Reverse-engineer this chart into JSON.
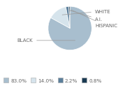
{
  "slices": [
    83.0,
    14.0,
    2.2,
    0.8
  ],
  "labels": [
    "BLACK",
    "WHITE",
    "A.I.",
    "HISPANIC"
  ],
  "colors": [
    "#a8bece",
    "#d6e4ec",
    "#5b7f9b",
    "#1a3a52"
  ],
  "legend_labels": [
    "83.0%",
    "14.0%",
    "2.2%",
    "0.8%"
  ],
  "legend_colors": [
    "#a8bece",
    "#d6e4ec",
    "#5b7f9b",
    "#1a3a52"
  ],
  "text_color": "#666666",
  "background_color": "#ffffff",
  "startangle": 90,
  "label_fontsize": 5.0,
  "legend_fontsize": 5.2
}
